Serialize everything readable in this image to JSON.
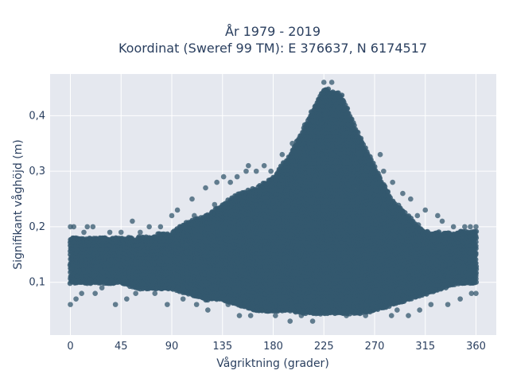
{
  "chart_data": {
    "type": "scatter",
    "title_line1": "År 1979 - 2019",
    "title_line2": "Koordinat (Sweref 99 TM): E 376637, N 6174517",
    "xlabel": "Vågriktning (grader)",
    "ylabel": "Signifikant våghöjd (m)",
    "xlim": [
      -18,
      378
    ],
    "ylim": [
      0.005,
      0.475
    ],
    "x_ticks": [
      0,
      45,
      90,
      135,
      180,
      225,
      270,
      315,
      360
    ],
    "x_tick_labels": [
      "0",
      "45",
      "90",
      "135",
      "180",
      "225",
      "270",
      "315",
      "360"
    ],
    "y_ticks": [
      0.1,
      0.2,
      0.3,
      0.4
    ],
    "y_tick_labels": [
      "0,1",
      "0,2",
      "0,3",
      "0,4"
    ],
    "grid": true,
    "marker_color": "#34586e",
    "plot_background": "#e5e8ef",
    "envelope": {
      "x": [
        0,
        20,
        45,
        60,
        90,
        105,
        120,
        135,
        150,
        165,
        180,
        195,
        210,
        225,
        240,
        255,
        270,
        285,
        300,
        315,
        330,
        345,
        360
      ],
      "y_upper": [
        0.18,
        0.18,
        0.18,
        0.18,
        0.19,
        0.21,
        0.22,
        0.24,
        0.26,
        0.27,
        0.29,
        0.33,
        0.39,
        0.45,
        0.44,
        0.37,
        0.31,
        0.25,
        0.22,
        0.19,
        0.19,
        0.19,
        0.19
      ],
      "y_lower": [
        0.1,
        0.1,
        0.1,
        0.09,
        0.09,
        0.08,
        0.07,
        0.07,
        0.06,
        0.05,
        0.05,
        0.05,
        0.045,
        0.045,
        0.045,
        0.045,
        0.05,
        0.06,
        0.07,
        0.08,
        0.09,
        0.1,
        0.1
      ]
    },
    "scattered_points": [
      [
        0,
        0.2
      ],
      [
        3,
        0.2
      ],
      [
        0,
        0.06
      ],
      [
        5,
        0.07
      ],
      [
        10,
        0.08
      ],
      [
        12,
        0.19
      ],
      [
        15,
        0.2
      ],
      [
        20,
        0.2
      ],
      [
        22,
        0.08
      ],
      [
        28,
        0.09
      ],
      [
        35,
        0.19
      ],
      [
        40,
        0.06
      ],
      [
        45,
        0.19
      ],
      [
        50,
        0.07
      ],
      [
        55,
        0.21
      ],
      [
        58,
        0.08
      ],
      [
        62,
        0.19
      ],
      [
        70,
        0.2
      ],
      [
        75,
        0.08
      ],
      [
        80,
        0.2
      ],
      [
        86,
        0.06
      ],
      [
        90,
        0.22
      ],
      [
        95,
        0.23
      ],
      [
        100,
        0.07
      ],
      [
        108,
        0.25
      ],
      [
        110,
        0.22
      ],
      [
        112,
        0.06
      ],
      [
        120,
        0.27
      ],
      [
        122,
        0.05
      ],
      [
        128,
        0.24
      ],
      [
        130,
        0.28
      ],
      [
        136,
        0.29
      ],
      [
        140,
        0.06
      ],
      [
        142,
        0.28
      ],
      [
        148,
        0.29
      ],
      [
        150,
        0.04
      ],
      [
        156,
        0.3
      ],
      [
        158,
        0.31
      ],
      [
        160,
        0.04
      ],
      [
        165,
        0.3
      ],
      [
        170,
        0.05
      ],
      [
        172,
        0.31
      ],
      [
        178,
        0.3
      ],
      [
        182,
        0.04
      ],
      [
        188,
        0.33
      ],
      [
        195,
        0.03
      ],
      [
        197,
        0.35
      ],
      [
        205,
        0.04
      ],
      [
        215,
        0.03
      ],
      [
        225,
        0.46
      ],
      [
        232,
        0.46
      ],
      [
        245,
        0.04
      ],
      [
        262,
        0.04
      ],
      [
        275,
        0.33
      ],
      [
        278,
        0.3
      ],
      [
        285,
        0.04
      ],
      [
        286,
        0.28
      ],
      [
        290,
        0.05
      ],
      [
        295,
        0.26
      ],
      [
        300,
        0.04
      ],
      [
        302,
        0.25
      ],
      [
        308,
        0.22
      ],
      [
        310,
        0.05
      ],
      [
        315,
        0.23
      ],
      [
        320,
        0.06
      ],
      [
        326,
        0.22
      ],
      [
        330,
        0.21
      ],
      [
        335,
        0.06
      ],
      [
        340,
        0.2
      ],
      [
        346,
        0.07
      ],
      [
        350,
        0.2
      ],
      [
        355,
        0.2
      ],
      [
        356,
        0.08
      ],
      [
        360,
        0.2
      ],
      [
        360,
        0.08
      ]
    ]
  }
}
